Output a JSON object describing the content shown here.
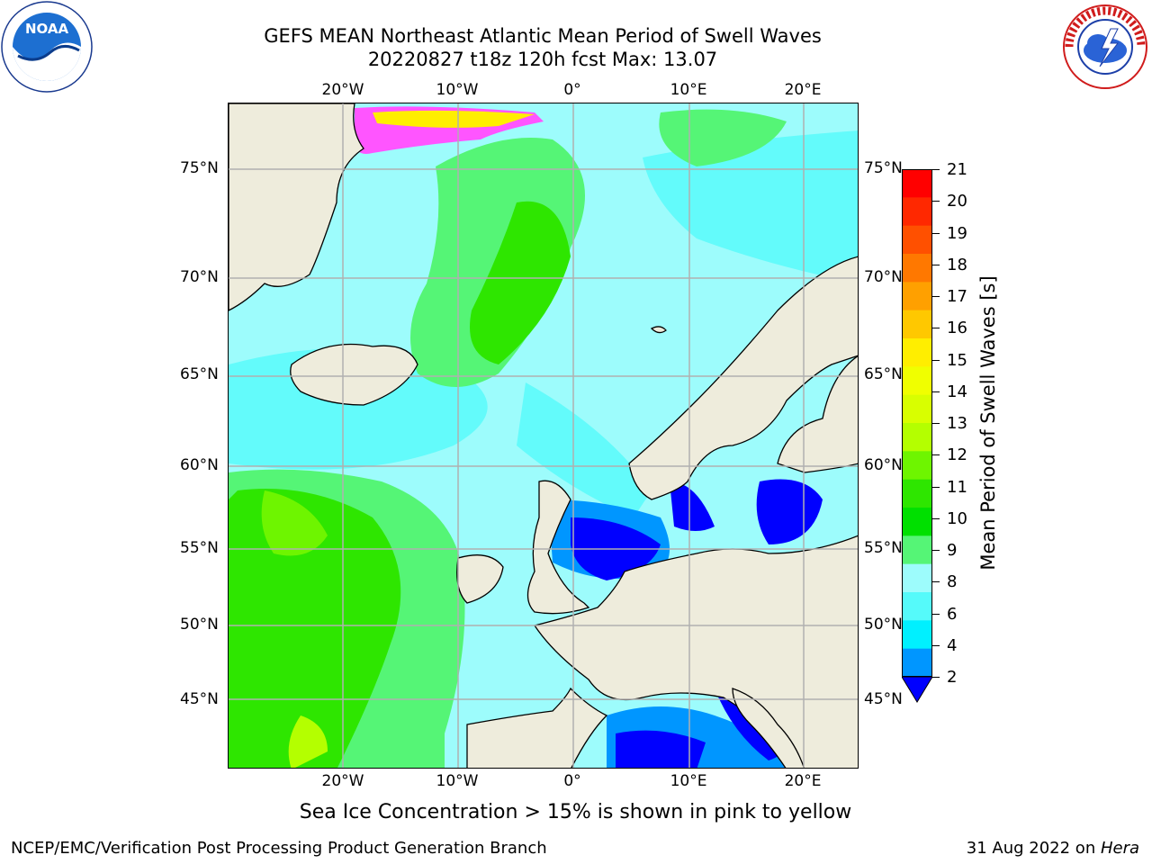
{
  "header": {
    "title_line1": "GEFS MEAN Northeast Atlantic Mean Period of Swell Waves",
    "title_line2": "20220827 t18z 120h fcst   Max: 13.07"
  },
  "logos": {
    "left": "NOAA",
    "right": "NATIONAL WEATHER SERVICE"
  },
  "map": {
    "lon_labels": [
      "20°W",
      "10°W",
      "0°",
      "10°E",
      "20°E"
    ],
    "lat_labels": [
      "75°N",
      "70°N",
      "65°N",
      "60°N",
      "55°N",
      "50°N",
      "45°N"
    ],
    "colors": {
      "land": "#eeecdc",
      "grid": "#b0b0b0",
      "ice": "#ff55ff"
    }
  },
  "colorbar": {
    "label": "Mean Period of Swell Waves [s]",
    "ticks": [
      "21",
      "20",
      "19",
      "18",
      "17",
      "16",
      "15",
      "14",
      "13",
      "12",
      "11",
      "10",
      "9",
      "8",
      "6",
      "4",
      "2"
    ],
    "colors": [
      "#ff0000",
      "#ff2800",
      "#ff5000",
      "#ff7800",
      "#ffa000",
      "#ffc800",
      "#ffee00",
      "#f0ff00",
      "#d8ff00",
      "#b4ff00",
      "#6ef500",
      "#2ee600",
      "#00e000",
      "#55f576",
      "#9dfcfc",
      "#55fafa",
      "#00f0ff",
      "#0096ff",
      "#0000ff"
    ]
  },
  "note": "Sea Ice Concentration > 15% is shown in pink to yellow",
  "footer": {
    "left": "NCEP/EMC/Verification Post Processing Product Generation Branch",
    "right_date": "31 Aug 2022 on ",
    "right_machine": "Hera"
  }
}
